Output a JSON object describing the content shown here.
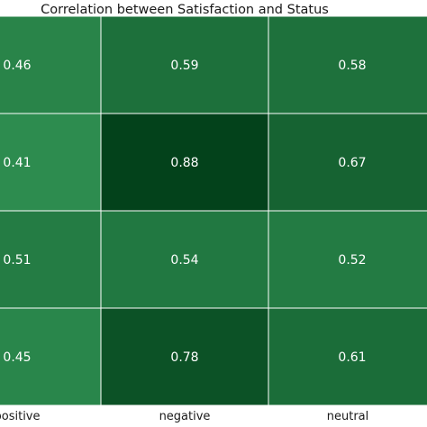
{
  "chart_data": {
    "type": "heatmap",
    "title": "Correlation between Satisfaction and Status",
    "columns": [
      "positive",
      "negative",
      "neutral"
    ],
    "column_tick_labels": [
      "positive",
      "negative",
      "neutral"
    ],
    "rows": 4,
    "values": [
      [
        0.46,
        0.59,
        0.58
      ],
      [
        0.41,
        0.88,
        0.67
      ],
      [
        0.51,
        0.54,
        0.52
      ],
      [
        0.45,
        0.78,
        0.61
      ]
    ],
    "value_labels": [
      [
        "0.46",
        "0.59",
        "0.58"
      ],
      [
        "0.41",
        "0.88",
        "0.67"
      ],
      [
        "0.51",
        "0.54",
        "0.52"
      ],
      [
        "0.45",
        "0.78",
        "0.61"
      ]
    ],
    "colormap": "Greens",
    "vmin": 0.41,
    "vmax": 0.88,
    "grid": true,
    "colors": {
      "low": "#2d8c4f",
      "high": "#03421b",
      "gridline": "#ffffff",
      "cell_text": "#ffffff"
    }
  }
}
